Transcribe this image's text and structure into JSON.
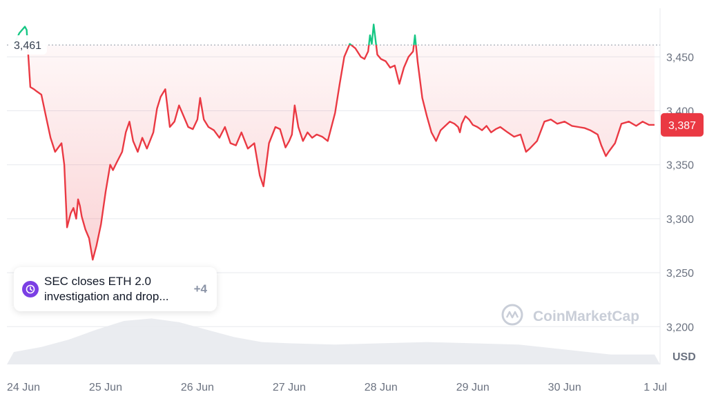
{
  "chart_data": {
    "type": "line",
    "title": "",
    "xlabel": "",
    "ylabel": "",
    "currency_label": "USD",
    "x_ticks": [
      "24 Jun",
      "25 Jun",
      "26 Jun",
      "27 Jun",
      "28 Jun",
      "29 Jun",
      "30 Jun",
      "1 Jul"
    ],
    "y_ticks": [
      "3,200",
      "3,250",
      "3,300",
      "3,350",
      "3,400",
      "3,450"
    ],
    "ylim": [
      3165,
      3495
    ],
    "xlim_days": [
      0,
      6.98
    ],
    "reference_price": 3461,
    "reference_label": "3,461",
    "current_price": 3387,
    "current_label": "3,387",
    "colors": {
      "above": "#16c784",
      "below": "#ea3943",
      "fill_below": "#ea3943",
      "volume": "#e8eaee",
      "grid": "#e7e9ee"
    },
    "series": [
      {
        "x": [
          0.0,
          0.06,
          0.12,
          0.14,
          0.18,
          0.22,
          0.25,
          0.3,
          0.35,
          0.4,
          0.45,
          0.52,
          0.55,
          0.58,
          0.62,
          0.65,
          0.68,
          0.7,
          0.72,
          0.74,
          0.78,
          0.82,
          0.86,
          0.9,
          0.95,
          1.0,
          1.05,
          1.08,
          1.12,
          1.18,
          1.22,
          1.26,
          1.3,
          1.35,
          1.4,
          1.45,
          1.52,
          1.56,
          1.6,
          1.65,
          1.7,
          1.75,
          1.8,
          1.85,
          1.9,
          1.95,
          2.0,
          2.03,
          2.07,
          2.12,
          2.18,
          2.24,
          2.3,
          2.36,
          2.42,
          2.48,
          2.55,
          2.62,
          2.68,
          2.72,
          2.78,
          2.85,
          2.9,
          2.96,
          3.0,
          3.03,
          3.06,
          3.1,
          3.15,
          3.2,
          3.25,
          3.3,
          3.36,
          3.42,
          3.5,
          3.55,
          3.6,
          3.66,
          3.72,
          3.78,
          3.82,
          3.86,
          3.88,
          3.9,
          3.92,
          3.96,
          4.0,
          4.05,
          4.1,
          4.15,
          4.2,
          4.25,
          4.3,
          4.35,
          4.37,
          4.4,
          4.45,
          4.5,
          4.55,
          4.6,
          4.65,
          4.7,
          4.75,
          4.8,
          4.84,
          4.86,
          4.88,
          4.92,
          4.96,
          5.0,
          5.05,
          5.1,
          5.15,
          5.2,
          5.25,
          5.3,
          5.38,
          5.45,
          5.52,
          5.58,
          5.62,
          5.7,
          5.78,
          5.85,
          5.92,
          6.0,
          6.08,
          6.15,
          6.22,
          6.28,
          6.32,
          6.36,
          6.4,
          6.45,
          6.48,
          6.55,
          6.62,
          6.7,
          6.78,
          6.85,
          6.92,
          6.98
        ],
        "y": [
          3461,
          3472,
          3478,
          3475,
          3422,
          3420,
          3418,
          3415,
          3395,
          3375,
          3362,
          3370,
          3350,
          3292,
          3305,
          3310,
          3300,
          3318,
          3312,
          3302,
          3290,
          3282,
          3262,
          3275,
          3295,
          3325,
          3350,
          3345,
          3352,
          3362,
          3380,
          3390,
          3372,
          3362,
          3375,
          3365,
          3380,
          3402,
          3413,
          3420,
          3385,
          3390,
          3405,
          3395,
          3385,
          3383,
          3392,
          3412,
          3392,
          3385,
          3382,
          3375,
          3385,
          3370,
          3368,
          3380,
          3365,
          3370,
          3340,
          3330,
          3370,
          3385,
          3383,
          3366,
          3372,
          3378,
          3405,
          3385,
          3372,
          3380,
          3375,
          3378,
          3376,
          3372,
          3398,
          3425,
          3450,
          3462,
          3458,
          3450,
          3448,
          3455,
          3470,
          3462,
          3480,
          3452,
          3448,
          3446,
          3440,
          3442,
          3425,
          3440,
          3450,
          3455,
          3470,
          3445,
          3412,
          3395,
          3380,
          3372,
          3382,
          3386,
          3390,
          3388,
          3385,
          3380,
          3388,
          3395,
          3392,
          3387,
          3385,
          3382,
          3386,
          3380,
          3383,
          3385,
          3380,
          3376,
          3378,
          3362,
          3365,
          3372,
          3390,
          3392,
          3388,
          3390,
          3386,
          3385,
          3384,
          3382,
          3380,
          3378,
          3368,
          3358,
          3362,
          3370,
          3388,
          3390,
          3386,
          3390,
          3387,
          3387
        ]
      }
    ],
    "volume": {
      "x": [
        0.0,
        0.3,
        0.6,
        0.9,
        1.2,
        1.5,
        1.8,
        2.1,
        2.4,
        2.7,
        3.0,
        3.5,
        4.0,
        4.5,
        5.0,
        5.5,
        6.0,
        6.5,
        6.98
      ],
      "values": [
        10,
        14,
        20,
        28,
        35,
        37,
        34,
        28,
        22,
        18,
        17,
        16,
        17,
        18,
        17,
        16,
        12,
        8,
        8
      ]
    }
  },
  "event": {
    "line1": "SEC closes ETH 2.0",
    "line2": "investigation and drop...",
    "more": "+4"
  },
  "watermark": "CoinMarketCap"
}
